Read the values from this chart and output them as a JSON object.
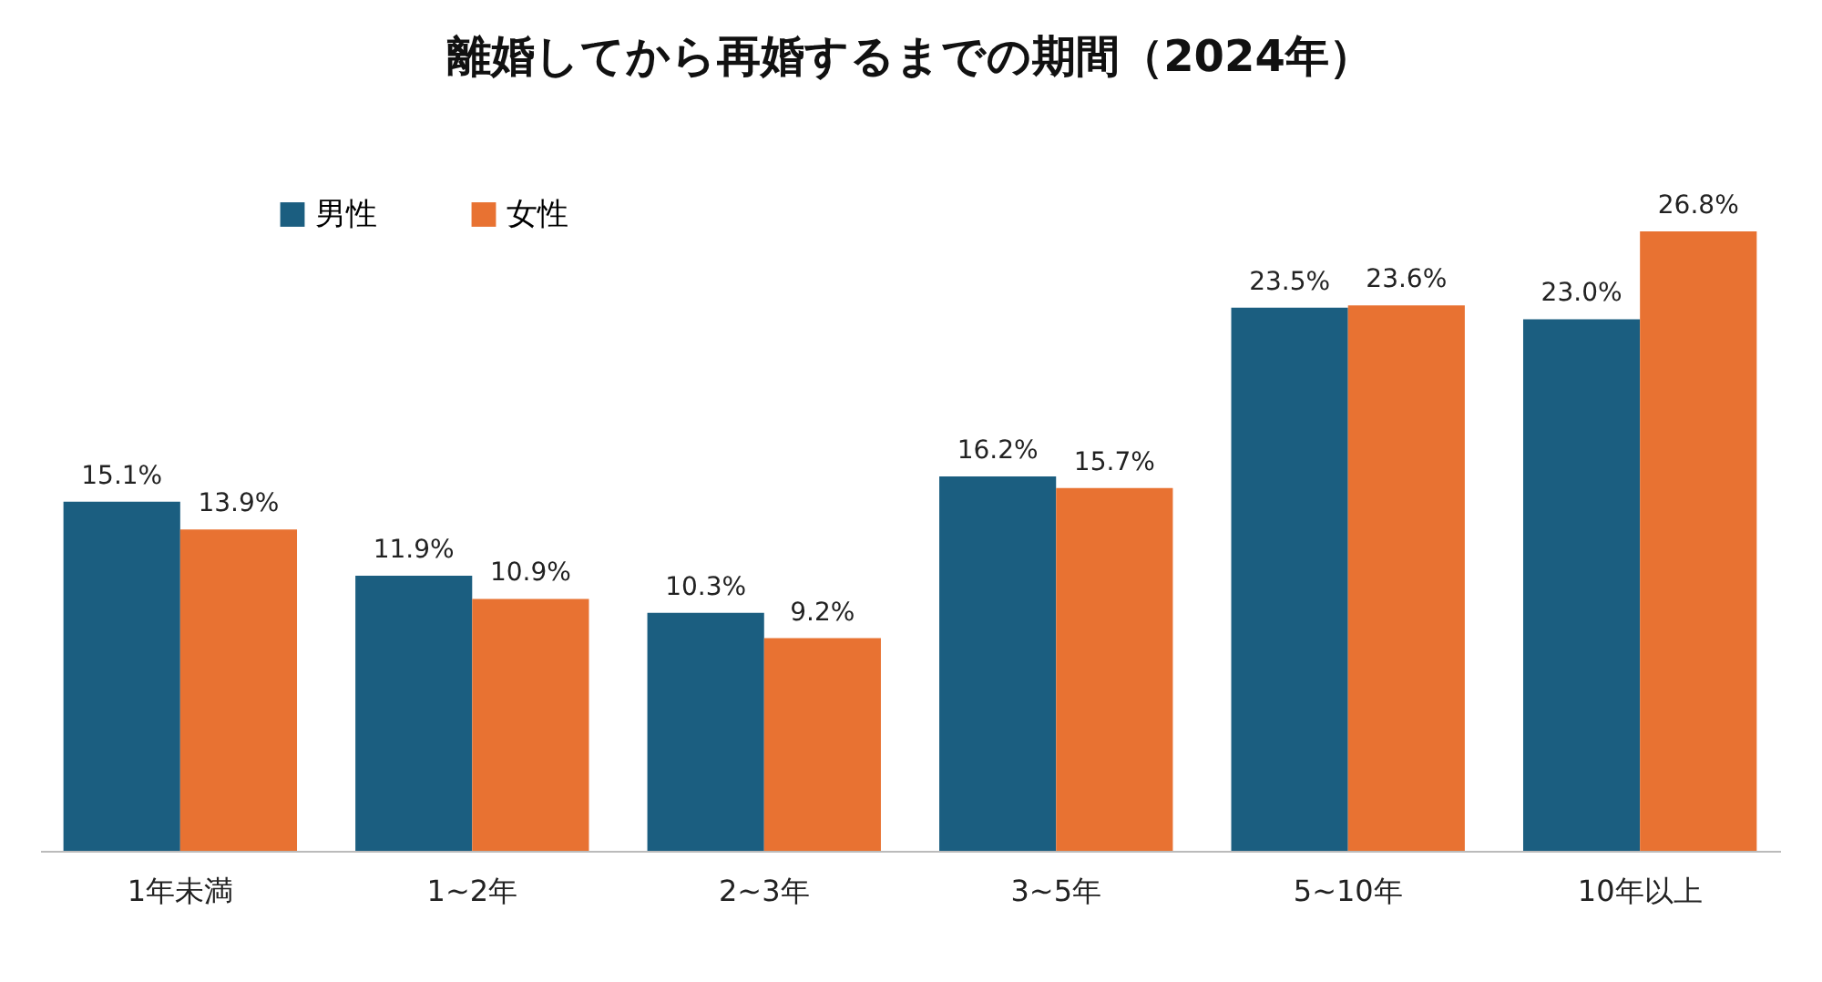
{
  "chart_data": {
    "type": "bar",
    "title": "離婚してから再婚するまでの期間（2024年）",
    "categories": [
      "1年未満",
      "1~2年",
      "2~3年",
      "3~5年",
      "5~10年",
      "10年以上"
    ],
    "series": [
      {
        "name": "男性",
        "color": "#1b5e80",
        "values": [
          15.1,
          11.9,
          10.3,
          16.2,
          23.5,
          23.0
        ],
        "value_labels": [
          "15.1%",
          "11.9%",
          "10.3%",
          "16.2%",
          "23.5%",
          "23.0%"
        ]
      },
      {
        "name": "女性",
        "color": "#e87232",
        "values": [
          13.9,
          10.9,
          9.2,
          15.7,
          23.6,
          26.8
        ],
        "value_labels": [
          "13.9%",
          "10.9%",
          "9.2%",
          "15.7%",
          "23.6%",
          "26.8%"
        ]
      }
    ],
    "legend": "top left",
    "grid": false
  }
}
